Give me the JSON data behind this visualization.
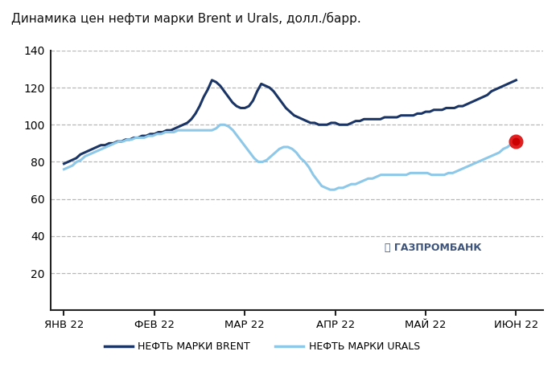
{
  "title": "Динамика цен нефти марки Brent и Urals, долл./барр.",
  "background_color": "#ffffff",
  "grid_color": "#b0b0b0",
  "ylim": [
    0,
    140
  ],
  "yticks": [
    20,
    40,
    60,
    80,
    100,
    120,
    140
  ],
  "xlabel_ticks": [
    "ЯНВ 22",
    "ФЕВ 22",
    "МАР 22",
    "АПР 22",
    "МАЙ 22",
    "ИЮН 22"
  ],
  "brent_color": "#1a3565",
  "urals_color": "#8ec8e8",
  "marker_color": "#e02020",
  "marker_inner": "#cc0000",
  "legend_brent": "НЕФТЬ МАРКИ BRENT",
  "legend_urals": "НЕФТЬ МАРКИ URALS",
  "brent_data": [
    79,
    80,
    81,
    82,
    84,
    85,
    86,
    87,
    88,
    89,
    89,
    90,
    90,
    91,
    91,
    92,
    92,
    93,
    93,
    94,
    94,
    95,
    95,
    96,
    96,
    97,
    97,
    98,
    99,
    100,
    101,
    103,
    106,
    110,
    115,
    119,
    124,
    123,
    121,
    118,
    115,
    112,
    110,
    109,
    109,
    110,
    113,
    118,
    122,
    121,
    120,
    118,
    115,
    112,
    109,
    107,
    105,
    104,
    103,
    102,
    101,
    101,
    100,
    100,
    100,
    101,
    101,
    100,
    100,
    100,
    101,
    102,
    102,
    103,
    103,
    103,
    103,
    103,
    104,
    104,
    104,
    104,
    105,
    105,
    105,
    105,
    106,
    106,
    107,
    107,
    108,
    108,
    108,
    109,
    109,
    109,
    110,
    110,
    111,
    112,
    113,
    114,
    115,
    116,
    118,
    119,
    120,
    121,
    122,
    123,
    124
  ],
  "urals_data": [
    76,
    77,
    78,
    80,
    81,
    83,
    84,
    85,
    86,
    87,
    88,
    89,
    90,
    91,
    91,
    92,
    92,
    93,
    93,
    93,
    94,
    94,
    95,
    95,
    96,
    96,
    96,
    97,
    97,
    97,
    97,
    97,
    97,
    97,
    97,
    97,
    98,
    100,
    100,
    99,
    97,
    94,
    91,
    88,
    85,
    82,
    80,
    80,
    81,
    83,
    85,
    87,
    88,
    88,
    87,
    85,
    82,
    80,
    77,
    73,
    70,
    67,
    66,
    65,
    65,
    66,
    66,
    67,
    68,
    68,
    69,
    70,
    71,
    71,
    72,
    73,
    73,
    73,
    73,
    73,
    73,
    73,
    74,
    74,
    74,
    74,
    74,
    73,
    73,
    73,
    73,
    74,
    74,
    75,
    76,
    77,
    78,
    79,
    80,
    81,
    82,
    83,
    84,
    85,
    87,
    88,
    90,
    91
  ]
}
